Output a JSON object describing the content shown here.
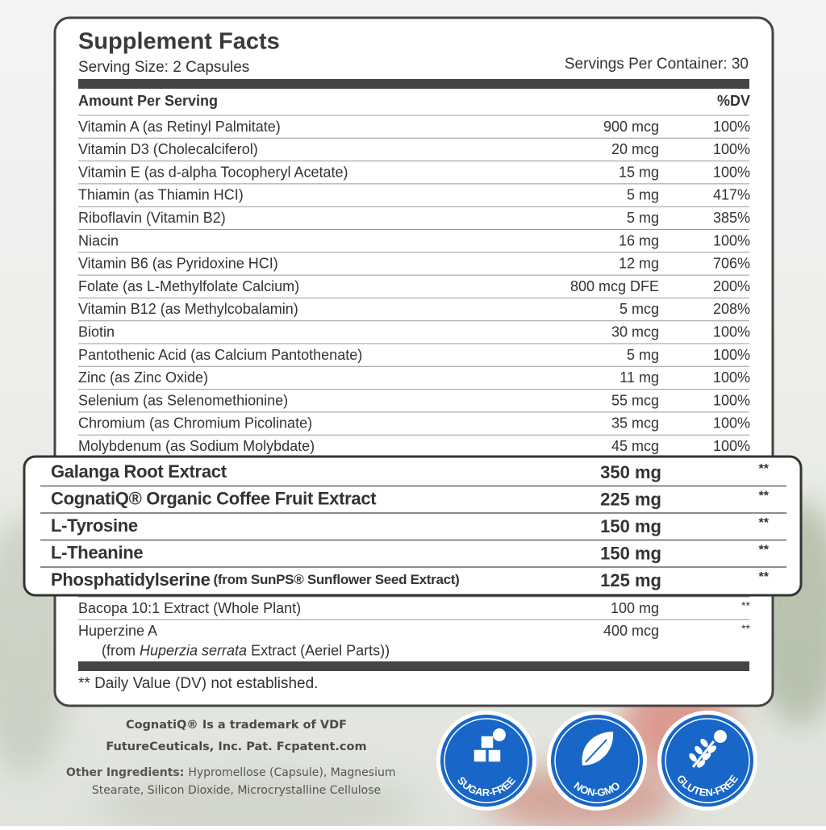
{
  "title": "Supplement Facts",
  "serving_size": "Serving Size: 2 Capsules",
  "servings_per_container": "Servings Per Container: 30",
  "header": {
    "amount": "Amount Per Serving",
    "dv": "%DV"
  },
  "rows": [
    {
      "name": "Vitamin A (as Retinyl Palmitate)",
      "amount": "900 mcg",
      "dv": "100%"
    },
    {
      "name": "Vitamin D3 (Cholecalciferol)",
      "amount": "20 mcg",
      "dv": "100%"
    },
    {
      "name": "Vitamin E (as d-alpha Tocopheryl Acetate)",
      "amount": "15 mg",
      "dv": "100%"
    },
    {
      "name": "Thiamin (as Thiamin HCI)",
      "amount": "5 mg",
      "dv": "417%"
    },
    {
      "name": "Riboflavin (Vitamin B2)",
      "amount": "5 mg",
      "dv": "385%"
    },
    {
      "name": "Niacin",
      "amount": "16 mg",
      "dv": "100%"
    },
    {
      "name": "Vitamin B6 (as Pyridoxine HCI)",
      "amount": "12 mg",
      "dv": "706%"
    },
    {
      "name": "Folate (as L-Methylfolate Calcium)",
      "amount": "800 mcg DFE",
      "dv": "200%"
    },
    {
      "name": "Vitamin B12 (as Methylcobalamin)",
      "amount": "5 mcg",
      "dv": "208%"
    },
    {
      "name": "Biotin",
      "amount": "30 mcg",
      "dv": "100%"
    },
    {
      "name": "Pantothenic Acid (as Calcium Pantothenate)",
      "amount": "5 mg",
      "dv": "100%"
    },
    {
      "name": "Zinc (as Zinc Oxide)",
      "amount": "11 mg",
      "dv": "100%"
    },
    {
      "name": "Selenium (as Selenomethionine)",
      "amount": "55 mcg",
      "dv": "100%"
    },
    {
      "name": "Chromium (as Chromium Picolinate)",
      "amount": "35 mcg",
      "dv": "100%"
    },
    {
      "name": "Molybdenum (as Sodium Molybdate)",
      "amount": "45 mcg",
      "dv": "100%"
    }
  ],
  "highlighted_rows": [
    {
      "name": "Galanga Root Extract",
      "amount": "350 mg",
      "dv": "**"
    },
    {
      "name": "CognatiQ® Organic Coffee Fruit Extract",
      "amount": "225 mg",
      "dv": "**"
    },
    {
      "name": "L-Tyrosine",
      "amount": "150 mg",
      "dv": "**"
    },
    {
      "name": "L-Theanine",
      "amount": "150 mg",
      "dv": "**"
    },
    {
      "name": "Phosphatidylserine",
      "note": "(from SunPS® Sunflower Seed Extract)",
      "amount": "125 mg",
      "dv": "**"
    }
  ],
  "extra_rows": [
    {
      "name": "Bacopa 10:1 Extract (Whole Plant)",
      "amount": "100 mg",
      "dv": "**"
    },
    {
      "name": "Huperzine A",
      "amount": "400 mcg",
      "dv": "**",
      "source": [
        "(from",
        "Huperzia serrata",
        "Extract (Aeriel Parts))"
      ]
    }
  ],
  "footnote": "** Daily Value (DV) not established.",
  "trademark": [
    "CognatiQ® Is a trademark of VDF",
    "FutureCeuticals, Inc. Pat. Fcpatent.com"
  ],
  "other_ingredients": {
    "label": "Other Ingredients:",
    "lines": [
      "Hypromellose (Capsule), Magnesium",
      "Stearate, Silicon Dioxide, Microcrystalline Cellulose"
    ]
  },
  "badges": [
    "SUGAR-FREE",
    "NON-GMO",
    "GLUTEN-FREE"
  ]
}
